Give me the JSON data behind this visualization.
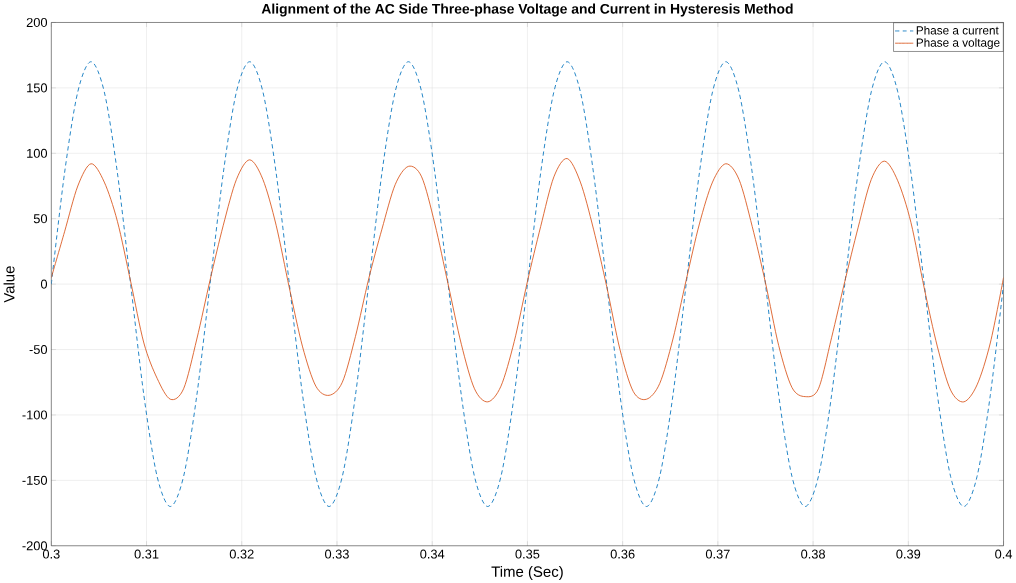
{
  "chart_data": {
    "type": "line",
    "title": "Alignment of the AC Side Three-phase Voltage and Current in Hysteresis Method",
    "xlabel": "Time (Sec)",
    "ylabel": "Value",
    "x": [
      0.3,
      0.30139,
      0.30278,
      0.30417,
      0.30556,
      0.30694,
      0.30833,
      0.30972,
      0.31111,
      0.3125,
      0.31389,
      0.31528,
      0.31667,
      0.31806,
      0.31944,
      0.32083,
      0.32222,
      0.32361,
      0.325,
      0.32639,
      0.32778,
      0.32917,
      0.33056,
      0.33194,
      0.33333,
      0.33472,
      0.33611,
      0.3375,
      0.33889,
      0.34028,
      0.34167,
      0.34306,
      0.34444,
      0.34583,
      0.34722,
      0.34861,
      0.35,
      0.35139,
      0.35278,
      0.35417,
      0.35556,
      0.35694,
      0.35833,
      0.35972,
      0.36111,
      0.3625,
      0.36389,
      0.36528,
      0.36667,
      0.36806,
      0.36944,
      0.37083,
      0.37222,
      0.37361,
      0.375,
      0.37639,
      0.37778,
      0.37917,
      0.38056,
      0.38194,
      0.38333,
      0.38472,
      0.38611,
      0.3875,
      0.38889,
      0.39028,
      0.39167,
      0.39306,
      0.39444,
      0.39583,
      0.39722,
      0.39861,
      0.4
    ],
    "series": [
      {
        "name": "Phase a current",
        "color": "#0072bd",
        "line_style": "dashed",
        "values": [
          0,
          85,
          147,
          170,
          147,
          85,
          0,
          -85,
          -147,
          -170,
          -147,
          -85,
          0,
          85,
          147,
          170,
          147,
          85,
          0,
          -85,
          -147,
          -170,
          -147,
          -85,
          0,
          85,
          147,
          170,
          147,
          85,
          0,
          -85,
          -147,
          -170,
          -147,
          -85,
          0,
          85,
          147,
          170,
          147,
          85,
          0,
          -85,
          -147,
          -170,
          -147,
          -85,
          0,
          85,
          147,
          170,
          147,
          85,
          0,
          -85,
          -147,
          -170,
          -147,
          -85,
          0,
          85,
          147,
          170,
          147,
          85,
          0,
          -85,
          -147,
          -170,
          -147,
          -85,
          0
        ]
      },
      {
        "name": "Phase a voltage",
        "color": "#d95319",
        "line_style": "solid",
        "values": [
          5,
          40,
          75,
          92,
          78,
          48,
          2,
          -45,
          -72,
          -88,
          -80,
          -42,
          3,
          45,
          80,
          95,
          80,
          45,
          -3,
          -48,
          -78,
          -85,
          -75,
          -40,
          4,
          42,
          76,
          90,
          82,
          46,
          0,
          -46,
          -80,
          -90,
          -78,
          -44,
          2,
          44,
          82,
          96,
          78,
          42,
          -2,
          -50,
          -82,
          -88,
          -76,
          -42,
          3,
          46,
          78,
          92,
          80,
          44,
          1,
          -47,
          -79,
          -86,
          -80,
          -41,
          2,
          43,
          80,
          94,
          79,
          47,
          -3,
          -48,
          -81,
          -90,
          -77,
          -45,
          5
        ]
      }
    ],
    "xlim": [
      0.3,
      0.4
    ],
    "ylim": [
      -200,
      200
    ],
    "xticks": [
      0.3,
      0.31,
      0.32,
      0.33,
      0.34,
      0.35,
      0.36,
      0.37,
      0.38,
      0.39,
      0.4
    ],
    "yticks": [
      -200,
      -150,
      -100,
      -50,
      0,
      50,
      100,
      150,
      200
    ],
    "grid": true,
    "legend": "top right"
  }
}
